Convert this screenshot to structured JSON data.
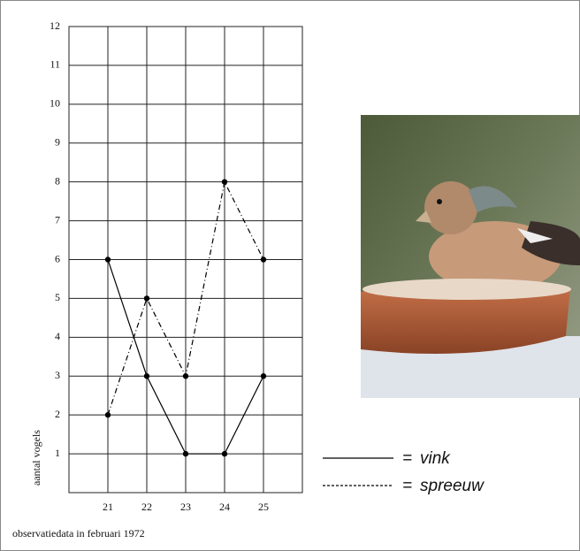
{
  "chart_data": {
    "type": "line",
    "x": [
      21,
      22,
      23,
      24,
      25
    ],
    "series": [
      {
        "name": "vink",
        "color": "#000000",
        "style": "solid",
        "values": [
          6,
          3,
          1,
          1,
          3
        ]
      },
      {
        "name": "spreeuw",
        "color": "#000000",
        "style": "dashed",
        "values": [
          2,
          5,
          3,
          8,
          6
        ]
      }
    ],
    "xlim": [
      20,
      26
    ],
    "xticks": [
      21,
      22,
      23,
      24,
      25
    ],
    "ylim": [
      0,
      12
    ],
    "yticks": [
      1,
      2,
      3,
      4,
      5,
      6,
      7,
      8,
      9,
      10,
      11,
      12
    ],
    "grid": true,
    "ylabel": "aantal vogels",
    "xlabel": "observatiedata in februari 1972",
    "legend_prefix": "="
  }
}
